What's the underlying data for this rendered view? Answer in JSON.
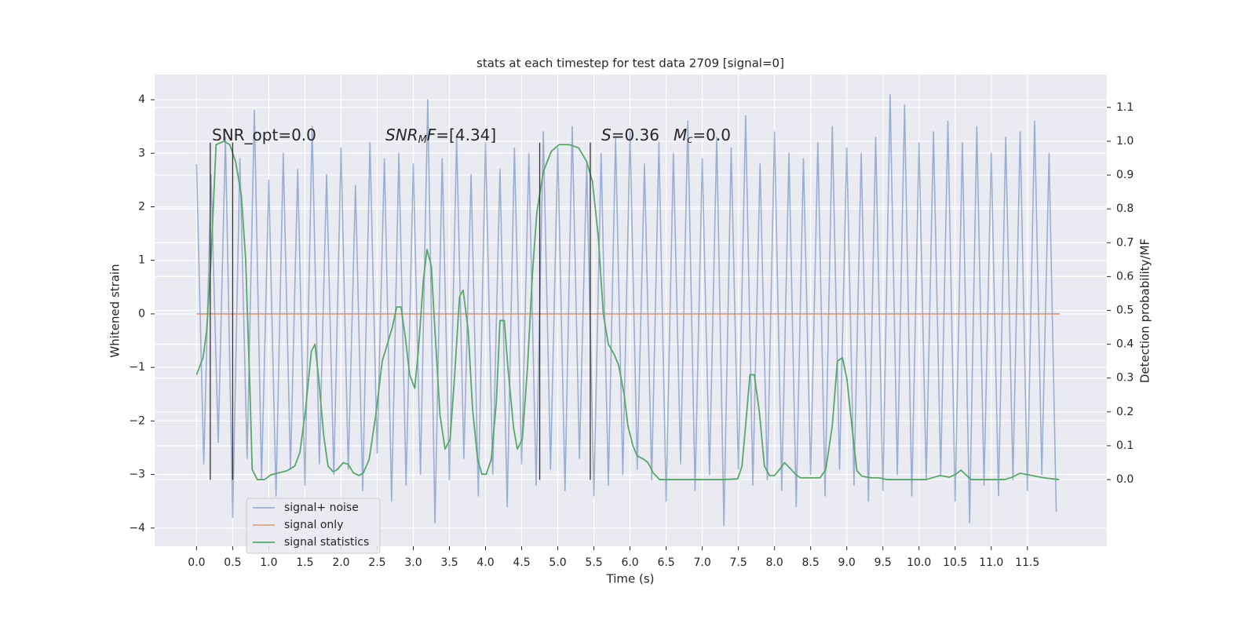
{
  "chart_data": {
    "type": "line",
    "title": "stats at each timestep for test data 2709 [signal=0]",
    "xlabel": "Time (s)",
    "ylabel": "Whitened strain",
    "y2label": "Detection probability/MF",
    "xlim": [
      -0.58,
      12.6
    ],
    "ylim": [
      -4.34,
      4.47
    ],
    "y2lim": [
      -0.197,
      1.197
    ],
    "xticks": [
      {
        "value": 0,
        "label": "0.0"
      },
      0.5,
      {
        "value": 1,
        "label": "1.0"
      },
      1.5,
      {
        "value": 2,
        "label": "2.0"
      },
      2.5,
      {
        "value": 3,
        "label": "3.0"
      },
      3.5,
      {
        "value": 4,
        "label": "4.0"
      },
      4.5,
      {
        "value": 5,
        "label": "5.0"
      },
      5.5,
      {
        "value": 6,
        "label": "6.0"
      },
      6.5,
      {
        "value": 7,
        "label": "7.0"
      },
      7.5,
      {
        "value": 8,
        "label": "8.0"
      },
      8.5,
      {
        "value": 9,
        "label": "9.0"
      },
      9.5,
      {
        "value": 10,
        "label": "10.0"
      },
      10.5,
      {
        "value": 11,
        "label": "11.0"
      },
      11.5
    ],
    "yticks": [
      {
        "value": -4,
        "label": "−4"
      },
      {
        "value": -3,
        "label": "−3"
      },
      {
        "value": -2,
        "label": "−2"
      },
      {
        "value": -1,
        "label": "−1"
      },
      0,
      1,
      2,
      3,
      4
    ],
    "y2ticks": [
      {
        "value": 0,
        "label": "0.0"
      },
      0.1,
      0.2,
      0.3,
      0.4,
      0.5,
      0.6,
      0.7,
      0.8,
      0.9,
      {
        "value": 1,
        "label": "1.0"
      },
      1.1
    ],
    "grid": true,
    "legend_loc": "lower left",
    "series": [
      {
        "name": "signal+ noise",
        "color": "#4c72b0",
        "opacity": 0.5,
        "axis": "y",
        "x": [
          0.0,
          0.1,
          0.2,
          0.3,
          0.4,
          0.5,
          0.6,
          0.7,
          0.8,
          0.9,
          1.0,
          1.1,
          1.2,
          1.3,
          1.4,
          1.5,
          1.6,
          1.7,
          1.8,
          1.9,
          2.0,
          2.1,
          2.2,
          2.3,
          2.4,
          2.5,
          2.6,
          2.7,
          2.8,
          2.9,
          3.0,
          3.1,
          3.2,
          3.3,
          3.4,
          3.5,
          3.6,
          3.7,
          3.8,
          3.9,
          4.0,
          4.1,
          4.2,
          4.3,
          4.4,
          4.5,
          4.6,
          4.7,
          4.8,
          4.9,
          5.0,
          5.1,
          5.2,
          5.3,
          5.4,
          5.5,
          5.6,
          5.7,
          5.8,
          5.9,
          6.0,
          6.1,
          6.2,
          6.3,
          6.4,
          6.5,
          6.6,
          6.7,
          6.8,
          6.9,
          7.0,
          7.1,
          7.2,
          7.3,
          7.4,
          7.5,
          7.6,
          7.7,
          7.8,
          7.9,
          8.0,
          8.1,
          8.2,
          8.3,
          8.4,
          8.5,
          8.6,
          8.7,
          8.8,
          8.9,
          9.0,
          9.1,
          9.2,
          9.3,
          9.4,
          9.5,
          9.6,
          9.7,
          9.8,
          9.9,
          10.0,
          10.1,
          10.2,
          10.3,
          10.4,
          10.5,
          10.6,
          10.7,
          10.8,
          10.9,
          11.0,
          11.1,
          11.2,
          11.3,
          11.4,
          11.5,
          11.6,
          11.7,
          11.8,
          11.9
        ],
        "values": [
          2.8,
          -2.8,
          2.6,
          -2.4,
          3.3,
          -3.8,
          2.9,
          -2.7,
          3.8,
          -3.1,
          2.5,
          -3.4,
          3.0,
          -2.9,
          2.7,
          -3.2,
          3.5,
          -2.8,
          2.6,
          -3.0,
          3.1,
          -2.9,
          2.4,
          -3.3,
          3.2,
          -2.6,
          2.9,
          -3.5,
          3.0,
          -3.2,
          2.8,
          -3.0,
          4.0,
          -3.9,
          2.9,
          -3.1,
          3.3,
          -2.7,
          2.6,
          -3.4,
          3.2,
          -3.0,
          2.7,
          -3.6,
          3.1,
          -2.8,
          3.0,
          -3.2,
          3.4,
          -2.9,
          3.1,
          -3.3,
          3.5,
          -2.7,
          2.8,
          -3.4,
          3.0,
          -3.2,
          3.3,
          -3.0,
          3.4,
          -2.9,
          2.8,
          -3.1,
          3.2,
          -3.5,
          3.0,
          -2.8,
          3.6,
          -3.3,
          2.9,
          -3.0,
          3.3,
          -3.95,
          3.1,
          -2.9,
          3.7,
          -3.2,
          2.8,
          -3.1,
          3.4,
          -3.3,
          3.0,
          -3.6,
          2.9,
          -3.0,
          3.2,
          -3.4,
          3.5,
          -2.9,
          3.1,
          -3.2,
          3.0,
          -3.5,
          3.3,
          -3.3,
          4.1,
          -3.0,
          3.9,
          -3.4,
          3.2,
          -3.1,
          3.4,
          -3.0,
          3.6,
          -3.5,
          3.2,
          -3.9,
          3.5,
          -3.2,
          3.0,
          -3.4,
          3.3,
          -3.1,
          3.4,
          -3.3,
          3.6,
          -3.0,
          3.0,
          -3.7
        ]
      },
      {
        "name": "signal only",
        "color": "#dd8452",
        "opacity": 0.7,
        "axis": "y",
        "x": [
          0.0,
          11.95
        ],
        "values": [
          0,
          0
        ]
      },
      {
        "name": "signal statistics",
        "color": "#55a868",
        "opacity": 1,
        "axis": "y2",
        "x": [
          0.0,
          0.09,
          0.14,
          0.2,
          0.27,
          0.38,
          0.46,
          0.54,
          0.62,
          0.68,
          0.74,
          0.77,
          0.84,
          0.94,
          1.03,
          1.25,
          1.36,
          1.43,
          1.5,
          1.59,
          1.64,
          1.69,
          1.76,
          1.82,
          1.89,
          1.95,
          2.03,
          2.1,
          2.17,
          2.25,
          2.31,
          2.39,
          2.48,
          2.57,
          2.64,
          2.71,
          2.77,
          2.83,
          2.89,
          2.95,
          3.02,
          3.07,
          3.14,
          3.19,
          3.25,
          3.3,
          3.37,
          3.44,
          3.51,
          3.57,
          3.64,
          3.69,
          3.76,
          3.82,
          3.89,
          3.95,
          4.01,
          4.08,
          4.15,
          4.2,
          4.26,
          4.31,
          4.39,
          4.44,
          4.51,
          4.58,
          4.65,
          4.71,
          4.8,
          4.91,
          5.02,
          5.16,
          5.29,
          5.4,
          5.48,
          5.56,
          5.63,
          5.7,
          5.78,
          5.84,
          5.92,
          5.97,
          6.04,
          6.1,
          6.19,
          6.25,
          6.32,
          6.41,
          6.84,
          7.28,
          7.49,
          7.55,
          7.6,
          7.66,
          7.72,
          7.79,
          7.86,
          7.93,
          8.0,
          8.07,
          8.14,
          8.23,
          8.3,
          8.36,
          8.63,
          8.71,
          8.8,
          8.87,
          8.94,
          9.0,
          9.08,
          9.14,
          9.21,
          9.34,
          9.45,
          9.56,
          10.1,
          10.21,
          10.29,
          10.42,
          10.51,
          10.58,
          10.64,
          10.72,
          11.18,
          11.29,
          11.4,
          11.51,
          11.73,
          11.94
        ],
        "values": [
          0.31,
          0.36,
          0.44,
          0.65,
          0.99,
          1.0,
          0.99,
          0.94,
          0.84,
          0.65,
          0.26,
          0.03,
          0.0,
          0.0,
          0.014,
          0.026,
          0.04,
          0.08,
          0.19,
          0.38,
          0.4,
          0.3,
          0.13,
          0.04,
          0.023,
          0.03,
          0.05,
          0.045,
          0.02,
          0.012,
          0.02,
          0.06,
          0.19,
          0.35,
          0.4,
          0.45,
          0.51,
          0.51,
          0.42,
          0.31,
          0.27,
          0.38,
          0.59,
          0.68,
          0.63,
          0.44,
          0.19,
          0.09,
          0.12,
          0.3,
          0.54,
          0.56,
          0.44,
          0.21,
          0.06,
          0.016,
          0.016,
          0.06,
          0.23,
          0.47,
          0.47,
          0.33,
          0.15,
          0.09,
          0.12,
          0.33,
          0.61,
          0.79,
          0.91,
          0.97,
          0.99,
          0.99,
          0.98,
          0.94,
          0.88,
          0.72,
          0.49,
          0.4,
          0.37,
          0.34,
          0.25,
          0.16,
          0.1,
          0.07,
          0.06,
          0.05,
          0.02,
          0.0,
          0.0,
          0.0,
          0.002,
          0.04,
          0.16,
          0.31,
          0.31,
          0.2,
          0.04,
          0.012,
          0.012,
          0.03,
          0.05,
          0.03,
          0.014,
          0.005,
          0.005,
          0.03,
          0.16,
          0.35,
          0.36,
          0.3,
          0.14,
          0.026,
          0.01,
          0.005,
          0.005,
          0.0,
          0.0,
          0.007,
          0.012,
          0.007,
          0.016,
          0.028,
          0.016,
          0.0,
          0.0,
          0.007,
          0.019,
          0.014,
          0.005,
          0.0
        ]
      }
    ],
    "vlines": {
      "x": [
        0.19,
        0.5,
        4.75,
        5.45
      ],
      "ymin": -3.1,
      "ymax": 3.2,
      "color": "#333333"
    },
    "annotations": [
      {
        "parts": [
          {
            "text": "SNR_opt=0.0"
          }
        ]
      },
      {
        "parts": [
          {
            "text": "SNR",
            "italic": true
          },
          {
            "text": "M",
            "italic": true,
            "sub": true
          },
          {
            "text": "F",
            "italic": true
          },
          {
            "text": "=[4.34]"
          }
        ]
      },
      {
        "parts": [
          {
            "text": "S",
            "italic": true
          },
          {
            "text": "=0.36"
          },
          {
            "text": "M",
            "italic": true
          },
          {
            "text": "c",
            "italic": true,
            "sub": true
          },
          {
            "text": "=0.0"
          }
        ]
      }
    ]
  }
}
